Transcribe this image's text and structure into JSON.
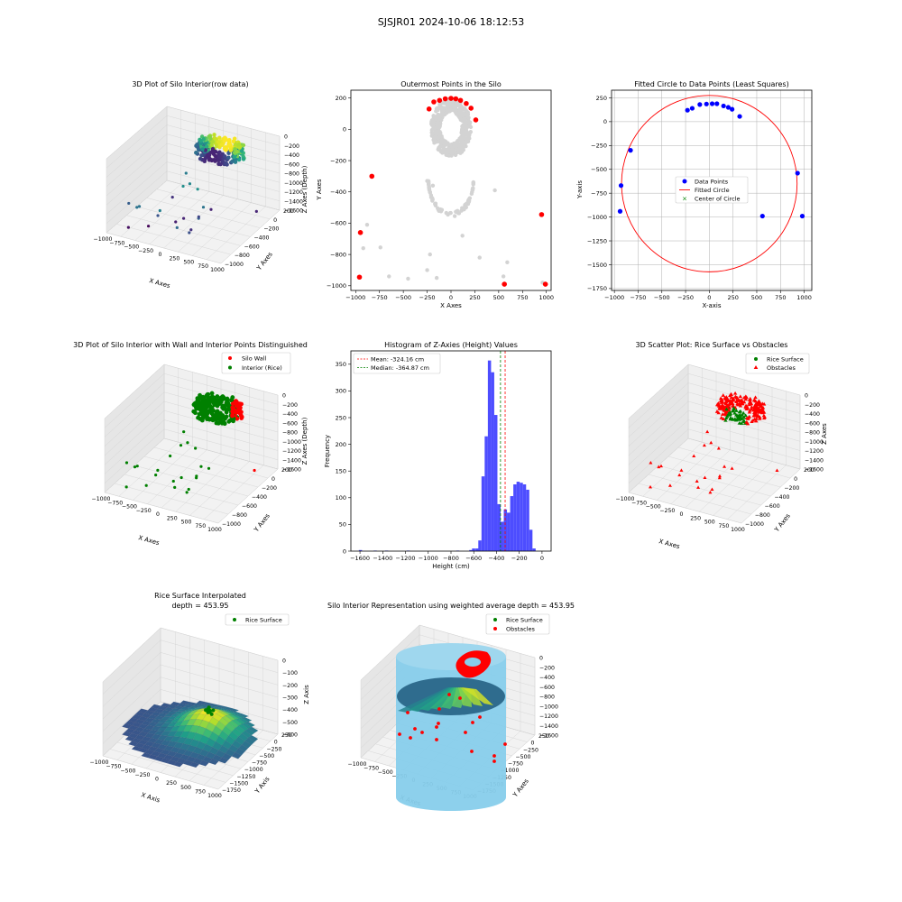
{
  "figure": {
    "suptitle": "SJSJR01 2024-10-06 18:12:53"
  },
  "colors": {
    "red": "#ff0000",
    "green": "#008000",
    "blue": "#0000ff",
    "gray": "#d3d3d3",
    "hist": "#4d4dff",
    "skyblue": "#87ceeb",
    "pane": "#f2f2f2"
  },
  "chart_data": [
    {
      "id": "p1",
      "type": "scatter3d",
      "title": "3D Plot of Silo Interior(row data)",
      "xlabel": "X Axes",
      "ylabel": "Y Axes",
      "zlabel": "Z Axes (Depth)",
      "xticks": [
        "−1000",
        "−750",
        "−500",
        "−250",
        "0",
        "250",
        "500",
        "750",
        "1000"
      ],
      "yticks": [
        "200",
        "0",
        "−200",
        "−400",
        "−600",
        "−800",
        "−1000"
      ],
      "zticks": [
        "0",
        "−200",
        "−400",
        "−600",
        "−800",
        "−1000",
        "−1200",
        "−1400",
        "−1600"
      ],
      "colormap": "viridis"
    },
    {
      "id": "p2",
      "type": "scatter",
      "title": "Outermost Points in the Silo",
      "xlabel": "X Axes",
      "ylabel": "Y Axes",
      "xlim": [
        -1050,
        1050
      ],
      "ylim": [
        -1030,
        250
      ],
      "xticks": [
        -1000,
        -750,
        -500,
        -250,
        0,
        250,
        500,
        750,
        1000
      ],
      "yticks": [
        200,
        0,
        -200,
        -400,
        -600,
        -800,
        -1000
      ],
      "outer_points": [
        [
          -180,
          175
        ],
        [
          -120,
          185
        ],
        [
          -60,
          195
        ],
        [
          0,
          198
        ],
        [
          50,
          195
        ],
        [
          100,
          185
        ],
        [
          160,
          165
        ],
        [
          210,
          135
        ],
        [
          260,
          60
        ],
        [
          -230,
          130
        ],
        [
          -830,
          -300
        ],
        [
          -950,
          -660
        ],
        [
          -960,
          -945
        ],
        [
          950,
          -545
        ],
        [
          560,
          -990
        ],
        [
          990,
          -990
        ]
      ],
      "sparse_points": [
        [
          -920,
          -760
        ],
        [
          -740,
          -755
        ],
        [
          -650,
          -940
        ],
        [
          -880,
          -610
        ],
        [
          -450,
          -955
        ],
        [
          -250,
          -900
        ],
        [
          -220,
          -800
        ],
        [
          -150,
          -950
        ],
        [
          120,
          -680
        ],
        [
          300,
          -820
        ],
        [
          550,
          -940
        ],
        [
          590,
          -850
        ],
        [
          460,
          -390
        ],
        [
          -250,
          -330
        ],
        [
          -190,
          -360
        ],
        [
          960,
          -980
        ]
      ]
    },
    {
      "id": "p3",
      "type": "scatter",
      "title": "Fitted Circle to Data Points (Least Squares)",
      "xlabel": "X-axis",
      "ylabel": "Y-axis",
      "xlim": [
        -1030,
        1080
      ],
      "ylim": [
        -1770,
        330
      ],
      "xticks": [
        -1000,
        -750,
        -500,
        -250,
        0,
        250,
        500,
        750,
        1000
      ],
      "yticks": [
        250,
        0,
        -250,
        -500,
        -750,
        -1000,
        -1250,
        -1500,
        -1750
      ],
      "data_points": [
        [
          -930,
          -670
        ],
        [
          -940,
          -940
        ],
        [
          -830,
          -300
        ],
        [
          -230,
          120
        ],
        [
          -180,
          140
        ],
        [
          -100,
          180
        ],
        [
          -30,
          185
        ],
        [
          30,
          188
        ],
        [
          80,
          188
        ],
        [
          150,
          165
        ],
        [
          200,
          150
        ],
        [
          240,
          130
        ],
        [
          320,
          55
        ],
        [
          560,
          -990
        ],
        [
          930,
          -540
        ],
        [
          980,
          -990
        ]
      ],
      "circle": {
        "cx": 0,
        "cy": -650,
        "r": 925
      },
      "legend": [
        "Data Points",
        "Fitted Circle",
        "Center of Circle"
      ]
    },
    {
      "id": "p4",
      "type": "scatter3d",
      "title": "3D Plot of Silo Interior with Wall and Interior Points Distinguished",
      "xlabel": "X Axes",
      "ylabel": "Y Axes",
      "zlabel": "Z Axes (Depth)",
      "xticks": [
        "−1000",
        "−750",
        "−500",
        "−250",
        "0",
        "250",
        "500",
        "750",
        "1000"
      ],
      "yticks": [
        "200",
        "0",
        "−200",
        "−400",
        "−600",
        "−800",
        "−1000"
      ],
      "zticks": [
        "0",
        "−200",
        "−400",
        "−600",
        "−800",
        "−1000",
        "−1200",
        "−1400",
        "−1600"
      ],
      "legend": [
        "Silo Wall",
        "Interior (Rice)"
      ]
    },
    {
      "id": "p5",
      "type": "bar",
      "title": "Histogram of Z-Axies (Height) Values",
      "xlabel": "Height (cm)",
      "ylabel": "Frequency",
      "xlim": [
        -1680,
        80
      ],
      "ylim": [
        0,
        375
      ],
      "xticks": [
        -1600,
        -1400,
        -1200,
        -1000,
        -800,
        -600,
        -400,
        -200,
        0
      ],
      "yticks": [
        0,
        50,
        100,
        150,
        200,
        250,
        300,
        350
      ],
      "bin_width": 28,
      "bins": [
        [
          -1610,
          2
        ],
        [
          -1480,
          1
        ],
        [
          -1380,
          1
        ],
        [
          -1190,
          1
        ],
        [
          -755,
          1
        ],
        [
          -640,
          2
        ],
        [
          -615,
          5
        ],
        [
          -585,
          5
        ],
        [
          -560,
          20
        ],
        [
          -532,
          140
        ],
        [
          -504,
          215
        ],
        [
          -476,
          357
        ],
        [
          -448,
          335
        ],
        [
          -420,
          255
        ],
        [
          -392,
          88
        ],
        [
          -364,
          55
        ],
        [
          -336,
          78
        ],
        [
          -308,
          72
        ],
        [
          -280,
          103
        ],
        [
          -252,
          125
        ],
        [
          -224,
          130
        ],
        [
          -196,
          128
        ],
        [
          -168,
          125
        ],
        [
          -140,
          115
        ],
        [
          -112,
          40
        ],
        [
          -84,
          5
        ]
      ],
      "mean": -324.16,
      "median": -364.87,
      "legend": [
        "Mean: -324.16 cm",
        "Median: -364.87 cm"
      ]
    },
    {
      "id": "p6",
      "type": "scatter3d",
      "title": "3D Scatter Plot: Rice Surface vs Obstacles",
      "xlabel": "X Axes",
      "ylabel": "Y Axes",
      "zlabel": "Z Axes",
      "xticks": [
        "−1000",
        "−750",
        "−500",
        "−250",
        "0",
        "250",
        "500",
        "750",
        "1000"
      ],
      "yticks": [
        "200",
        "0",
        "−200",
        "−400",
        "−600",
        "−800",
        "−1000"
      ],
      "zticks": [
        "0",
        "−200",
        "−400",
        "−600",
        "−800",
        "−1000",
        "−1200",
        "−1400",
        "−1600"
      ],
      "legend": [
        "Rice Surface",
        "Obstacles"
      ]
    },
    {
      "id": "p7",
      "type": "surface3d",
      "title": "Rice Surface Interpolated",
      "subtitle": "depth = 453.95",
      "xlabel": "X Axis",
      "ylabel": "Y Axis",
      "zlabel": "Z Axis",
      "xticks": [
        "−1000",
        "−750",
        "−500",
        "−250",
        "0",
        "250",
        "500",
        "750",
        "1000"
      ],
      "yticks": [
        "250",
        "0",
        "−250",
        "−500",
        "−750",
        "−1000",
        "−1250",
        "−1500",
        "−1750"
      ],
      "zticks": [
        "0",
        "−100",
        "−200",
        "−300",
        "−400",
        "−500",
        "−600"
      ],
      "legend": [
        "Rice Surface"
      ]
    },
    {
      "id": "p8",
      "type": "surface3d",
      "title": "Silo Interior Representation using weighted average depth = 453.95",
      "xlabel": "X Axes",
      "ylabel": "Y Axes",
      "xticks": [
        "−1000",
        "−750",
        "−500",
        "−250",
        "0",
        "250",
        "500",
        "750",
        "1000"
      ],
      "yticks": [
        "250",
        "0",
        "−250",
        "−500",
        "−750",
        "−1000",
        "−1250",
        "−1500",
        "−1750"
      ],
      "zticks": [
        "0",
        "−200",
        "−400",
        "−600",
        "−800",
        "−1000",
        "−1200",
        "−1400",
        "−1600"
      ],
      "legend": [
        "Rice Surface",
        "Obstacles"
      ]
    }
  ]
}
